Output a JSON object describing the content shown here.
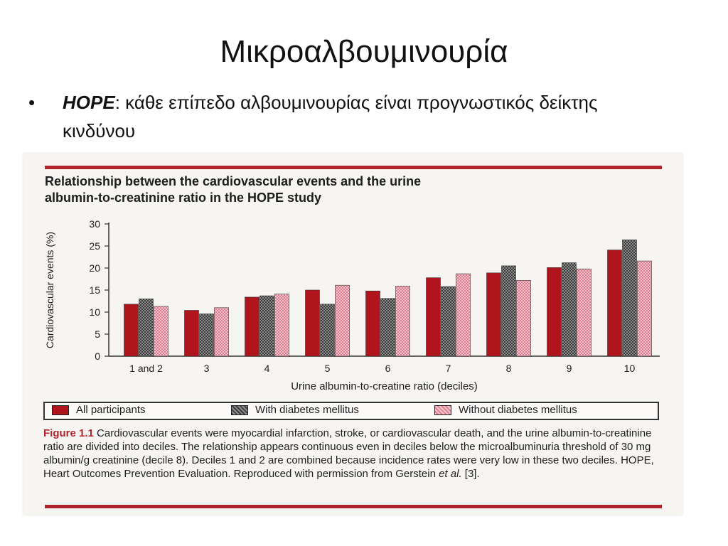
{
  "slide": {
    "title": "Μικροαλβουμινουρία",
    "bullet_symbol": "•",
    "bullet_bold": "HOPE",
    "bullet_text": ": κάθε επίπεδο αλβουμινουρίας είναι προγνωστικός δείκτης κινδύνου"
  },
  "figure": {
    "heading_line1": "Relationship between the cardiovascular events and the urine",
    "heading_line2": "albumin-to-creatinine ratio in the HOPE study",
    "caption_label": "Figure 1.1",
    "caption_text": " Cardiovascular events were myocardial infarction, stroke, or cardiovascular death, and the urine albumin-to-creatinine ratio are divided into deciles. The relationship appears continuous even in deciles below the microalbuminuria threshold of 30 mg albumin/g creatinine (decile 8). Deciles 1 and 2 are combined because incidence rates were very low in these two deciles. HOPE, Heart Outcomes Prevention Evaluation. Reproduced with permission from Gerstein ",
    "caption_italic": "et al.",
    "caption_end": " [3].",
    "legend": [
      "All participants",
      "With diabetes mellitus",
      "Without diabetes mellitus"
    ]
  },
  "chart_data": {
    "type": "bar",
    "title": "Relationship between the cardiovascular events and the urine albumin-to-creatinine ratio in the HOPE study",
    "xlabel": "Urine albumin-to-creatine ratio (deciles)",
    "ylabel": "Cardiovascular events (%)",
    "ylim": [
      0,
      30
    ],
    "yticks": [
      0,
      5,
      10,
      15,
      20,
      25,
      30
    ],
    "grid": false,
    "legend_position": "bottom",
    "categories": [
      "1 and 2",
      "3",
      "4",
      "5",
      "6",
      "7",
      "8",
      "9",
      "10"
    ],
    "series": [
      {
        "name": "All participants",
        "color": "#b0141c",
        "values": [
          11.8,
          10.4,
          13.4,
          15.0,
          14.8,
          17.8,
          18.9,
          20.1,
          24.1
        ]
      },
      {
        "name": "With diabetes mellitus",
        "color": "#5a5a5a",
        "values": [
          13.0,
          9.6,
          13.7,
          11.8,
          13.1,
          15.8,
          20.5,
          21.2,
          26.4
        ]
      },
      {
        "name": "Without diabetes mellitus",
        "color": "#f0a5b3",
        "values": [
          11.3,
          11.0,
          14.1,
          16.1,
          15.9,
          18.7,
          17.2,
          19.8,
          21.6
        ]
      }
    ]
  }
}
